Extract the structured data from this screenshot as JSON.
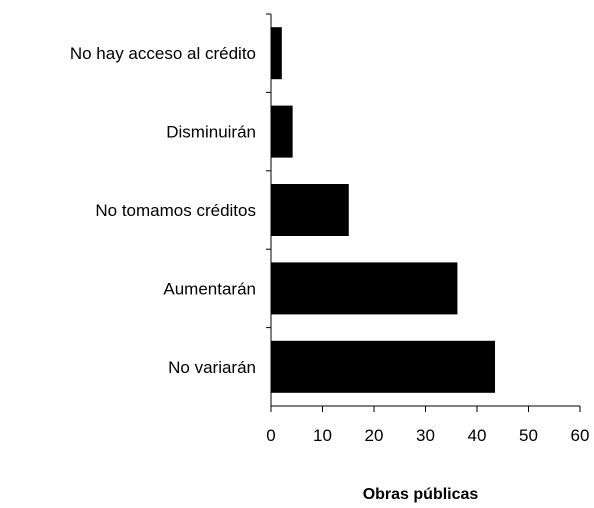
{
  "chart_data": {
    "type": "bar",
    "orientation": "horizontal",
    "categories": [
      "No variarán",
      "Aumentarán",
      "No tomamos créditos",
      "Disminuirán",
      "No hay acceso al crédito"
    ],
    "values": [
      43.5,
      36.2,
      15.1,
      4.2,
      2.1
    ],
    "title": "",
    "xlabel": "Obras públicas",
    "ylabel": "",
    "xlim": [
      0,
      60
    ],
    "xticks": [
      "0",
      "10",
      "20",
      "30",
      "40",
      "50",
      "60"
    ],
    "grid": false,
    "legend": "none",
    "bar_color": "#000000"
  }
}
